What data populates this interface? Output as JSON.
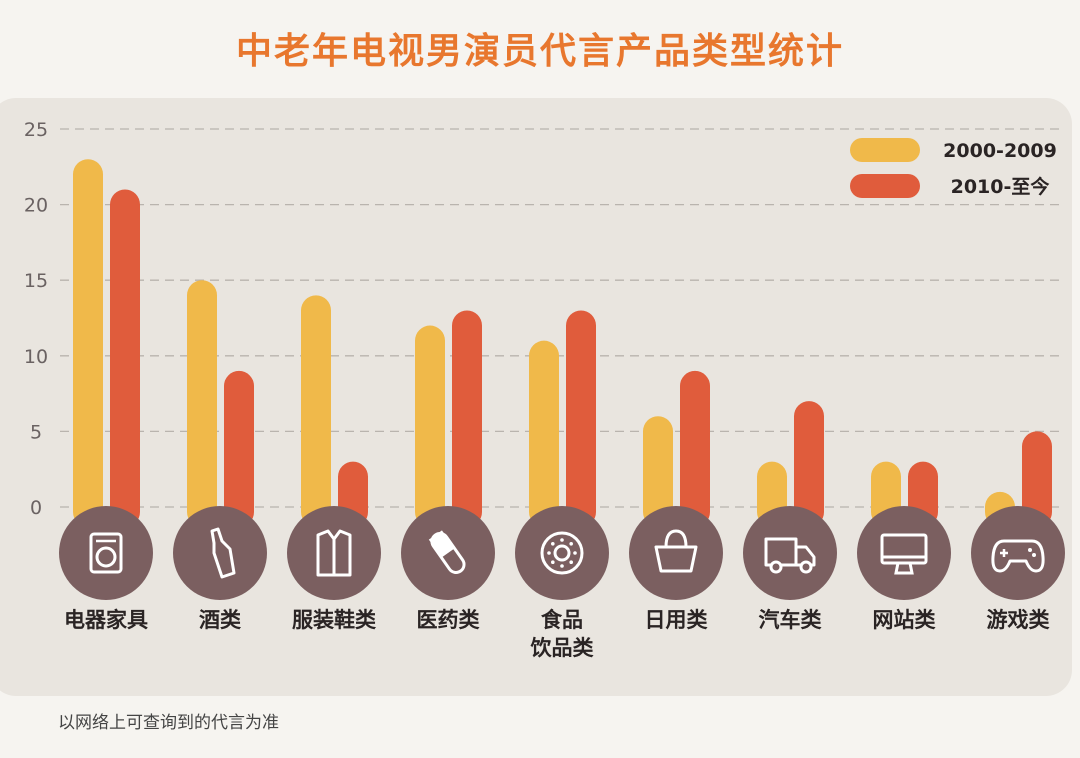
{
  "chart_data": {
    "type": "bar",
    "title": "中老年电视男演员代言产品类型统计",
    "xlabel": "",
    "ylabel": "",
    "ylim": [
      0,
      25
    ],
    "yticks": [
      0,
      5,
      10,
      15,
      20,
      25
    ],
    "grid": true,
    "legend_position": "top-right",
    "categories": [
      "电器家具",
      "酒类",
      "服装鞋类",
      "医药类",
      "食品饮品类",
      "日用类",
      "汽车类",
      "网站类",
      "游戏类"
    ],
    "category_labels": [
      "电器家具",
      "酒类",
      "服装鞋类",
      "医药类",
      "食品\n饮品类",
      "日用类",
      "汽车类",
      "网站类",
      "游戏类"
    ],
    "category_icons": [
      "washing-machine-icon",
      "bottle-icon",
      "shirt-icon",
      "pill-icon",
      "donut-icon",
      "shopping-bag-icon",
      "truck-icon",
      "monitor-icon",
      "gamepad-icon"
    ],
    "series": [
      {
        "name": "2000-2009",
        "color": "#f0b94a",
        "values": [
          23,
          15,
          14,
          12,
          11,
          6,
          3,
          3,
          1
        ]
      },
      {
        "name": "2010-至今",
        "color": "#e05c3c",
        "values": [
          21,
          9,
          3,
          13,
          13,
          9,
          7,
          3,
          5
        ]
      }
    ],
    "footnote": "以网络上可查询到的代言为准"
  },
  "colors": {
    "title": "#e8772e",
    "icon_circle": "#7b5f60",
    "panel": "#e9e5df"
  }
}
